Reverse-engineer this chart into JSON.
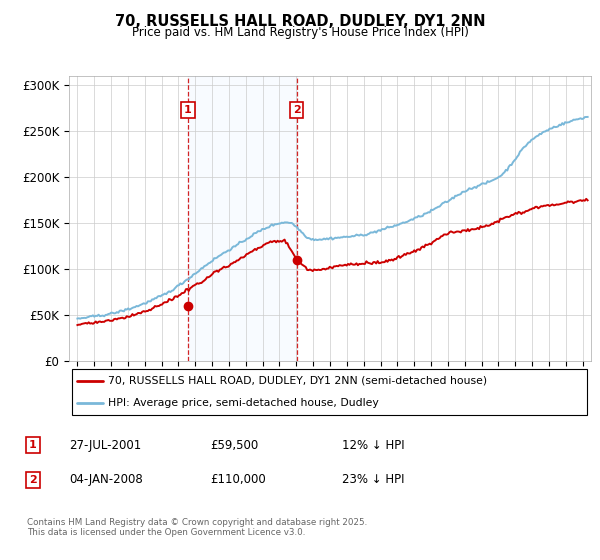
{
  "title": "70, RUSSELLS HALL ROAD, DUDLEY, DY1 2NN",
  "subtitle": "Price paid vs. HM Land Registry's House Price Index (HPI)",
  "legend_line1": "70, RUSSELLS HALL ROAD, DUDLEY, DY1 2NN (semi-detached house)",
  "legend_line2": "HPI: Average price, semi-detached house, Dudley",
  "marker1_date": "27-JUL-2001",
  "marker1_price": 59500,
  "marker1_label": "12% ↓ HPI",
  "marker1_x": 2001.57,
  "marker2_date": "04-JAN-2008",
  "marker2_price": 110000,
  "marker2_label": "23% ↓ HPI",
  "marker2_x": 2008.02,
  "hpi_color": "#7ab8d9",
  "price_color": "#cc0000",
  "shade_color": "#ddeeff",
  "background_color": "#ffffff",
  "grid_color": "#cccccc",
  "footer": "Contains HM Land Registry data © Crown copyright and database right 2025.\nThis data is licensed under the Open Government Licence v3.0.",
  "ylim": [
    0,
    310000
  ],
  "xlim": [
    1994.5,
    2025.5
  ]
}
